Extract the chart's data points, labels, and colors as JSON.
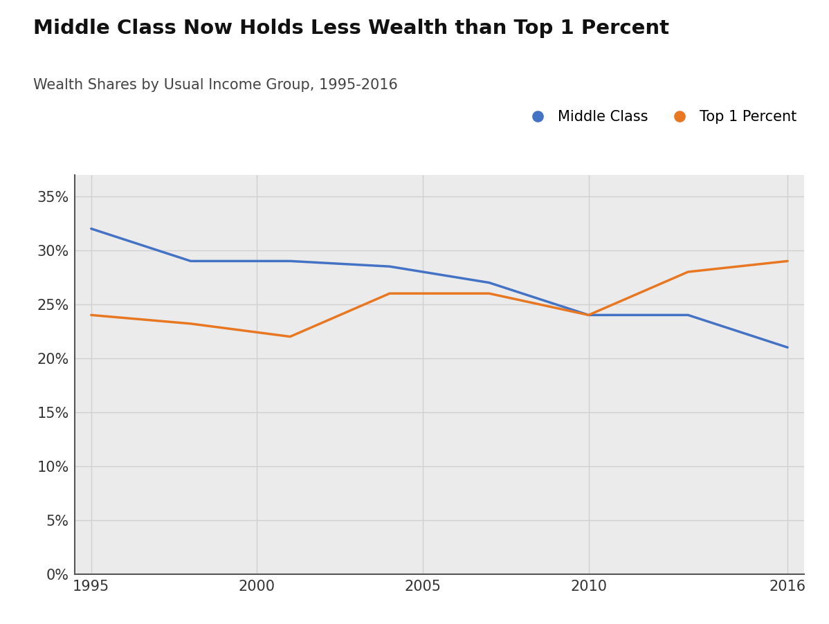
{
  "title": "Middle Class Now Holds Less Wealth than Top 1 Percent",
  "subtitle": "Wealth Shares by Usual Income Group, 1995-2016",
  "title_fontsize": 21,
  "subtitle_fontsize": 15,
  "background_color": "#ffffff",
  "plot_background_color": "#ebebeb",
  "middle_class": {
    "label": "Middle Class",
    "color": "#4472c4",
    "x": [
      1995,
      1998,
      2001,
      2004,
      2007,
      2010,
      2013,
      2016
    ],
    "y": [
      0.32,
      0.29,
      0.29,
      0.285,
      0.27,
      0.24,
      0.24,
      0.21
    ]
  },
  "top_1": {
    "label": "Top 1 Percent",
    "color": "#e87722",
    "x": [
      1995,
      1998,
      2001,
      2004,
      2007,
      2010,
      2013,
      2016
    ],
    "y": [
      0.24,
      0.232,
      0.22,
      0.26,
      0.26,
      0.24,
      0.28,
      0.29
    ]
  },
  "xlim": [
    1994.5,
    2016.5
  ],
  "ylim": [
    0.0,
    0.37
  ],
  "yticks": [
    0.0,
    0.05,
    0.1,
    0.15,
    0.2,
    0.25,
    0.3,
    0.35
  ],
  "xticks": [
    1995,
    2000,
    2005,
    2010,
    2016
  ],
  "line_width": 2.5,
  "marker_size": 0,
  "legend_marker_size": 12,
  "grid_color": "#d0d0d0",
  "axis_color": "#555555",
  "tick_color": "#333333",
  "tick_fontsize": 15
}
